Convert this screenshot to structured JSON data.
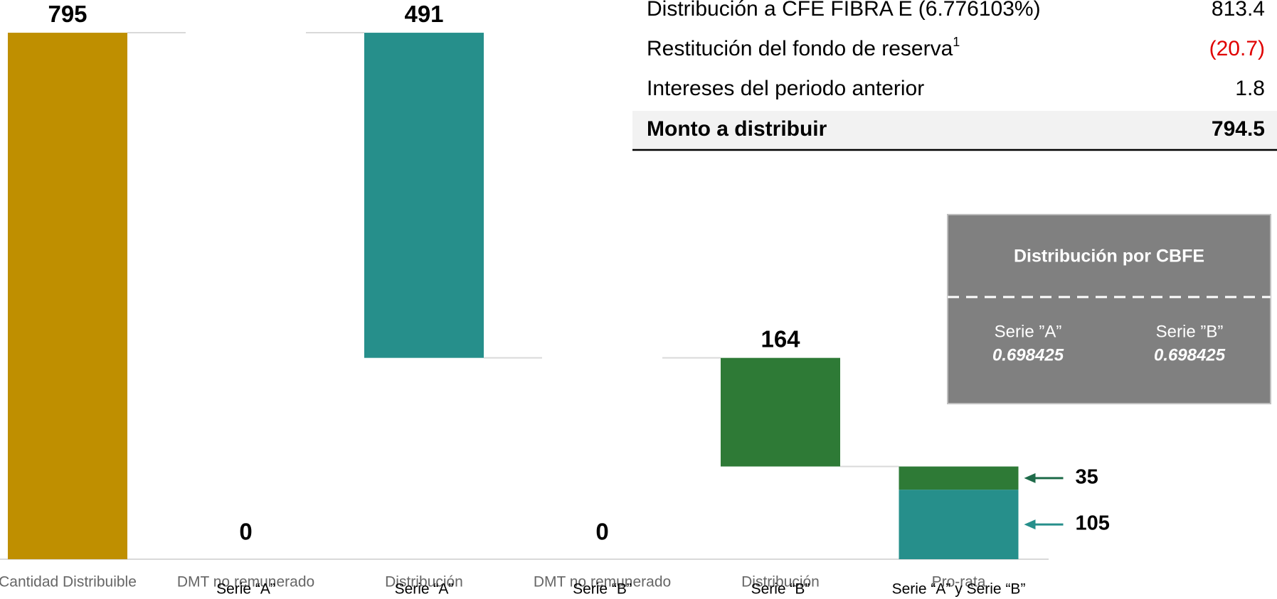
{
  "chart_data": {
    "type": "waterfall",
    "categories": [
      [
        "Cantidad Distribuible"
      ],
      [
        "DMT no remunerado",
        "Serie “A”"
      ],
      [
        "Distribución",
        "Serie “A”"
      ],
      [
        "DMT no remunerado",
        "Serie “B”"
      ],
      [
        "Distribución",
        "Serie “B”"
      ],
      [
        "Pro-rata",
        "Serie “A” y Serie “B”"
      ]
    ],
    "values": [
      795,
      0,
      491,
      0,
      164,
      null
    ],
    "colors": [
      "#bf8f00",
      "#bf8f00",
      "#268f8b",
      "#268f8b",
      "#2e7a36",
      null
    ],
    "pro_rata": {
      "values": [
        105,
        35
      ],
      "colors": [
        "#268f8b",
        "#2e7a36"
      ],
      "arrow_colors": [
        "#268f8b",
        "#1f6b4a"
      ]
    },
    "ylim": [
      0,
      800
    ]
  },
  "table": {
    "rows": [
      {
        "label": "Distribución a CFE FIBRA E (6.776103%)",
        "value": "813.4"
      },
      {
        "label": "Restitución del fondo de reserva",
        "note": "1",
        "value": "(20.7)",
        "value_color": "#e00000"
      },
      {
        "label": "Intereses del periodo anterior",
        "value": "1.8"
      },
      {
        "label": "Monto a distribuir",
        "value": "794.5",
        "total": true
      }
    ]
  },
  "box": {
    "title": "Distribución por CBFE",
    "columns": [
      {
        "name": "Serie ”A”",
        "value": "0.698425"
      },
      {
        "name": "Serie ”B”",
        "value": "0.698425"
      }
    ]
  }
}
